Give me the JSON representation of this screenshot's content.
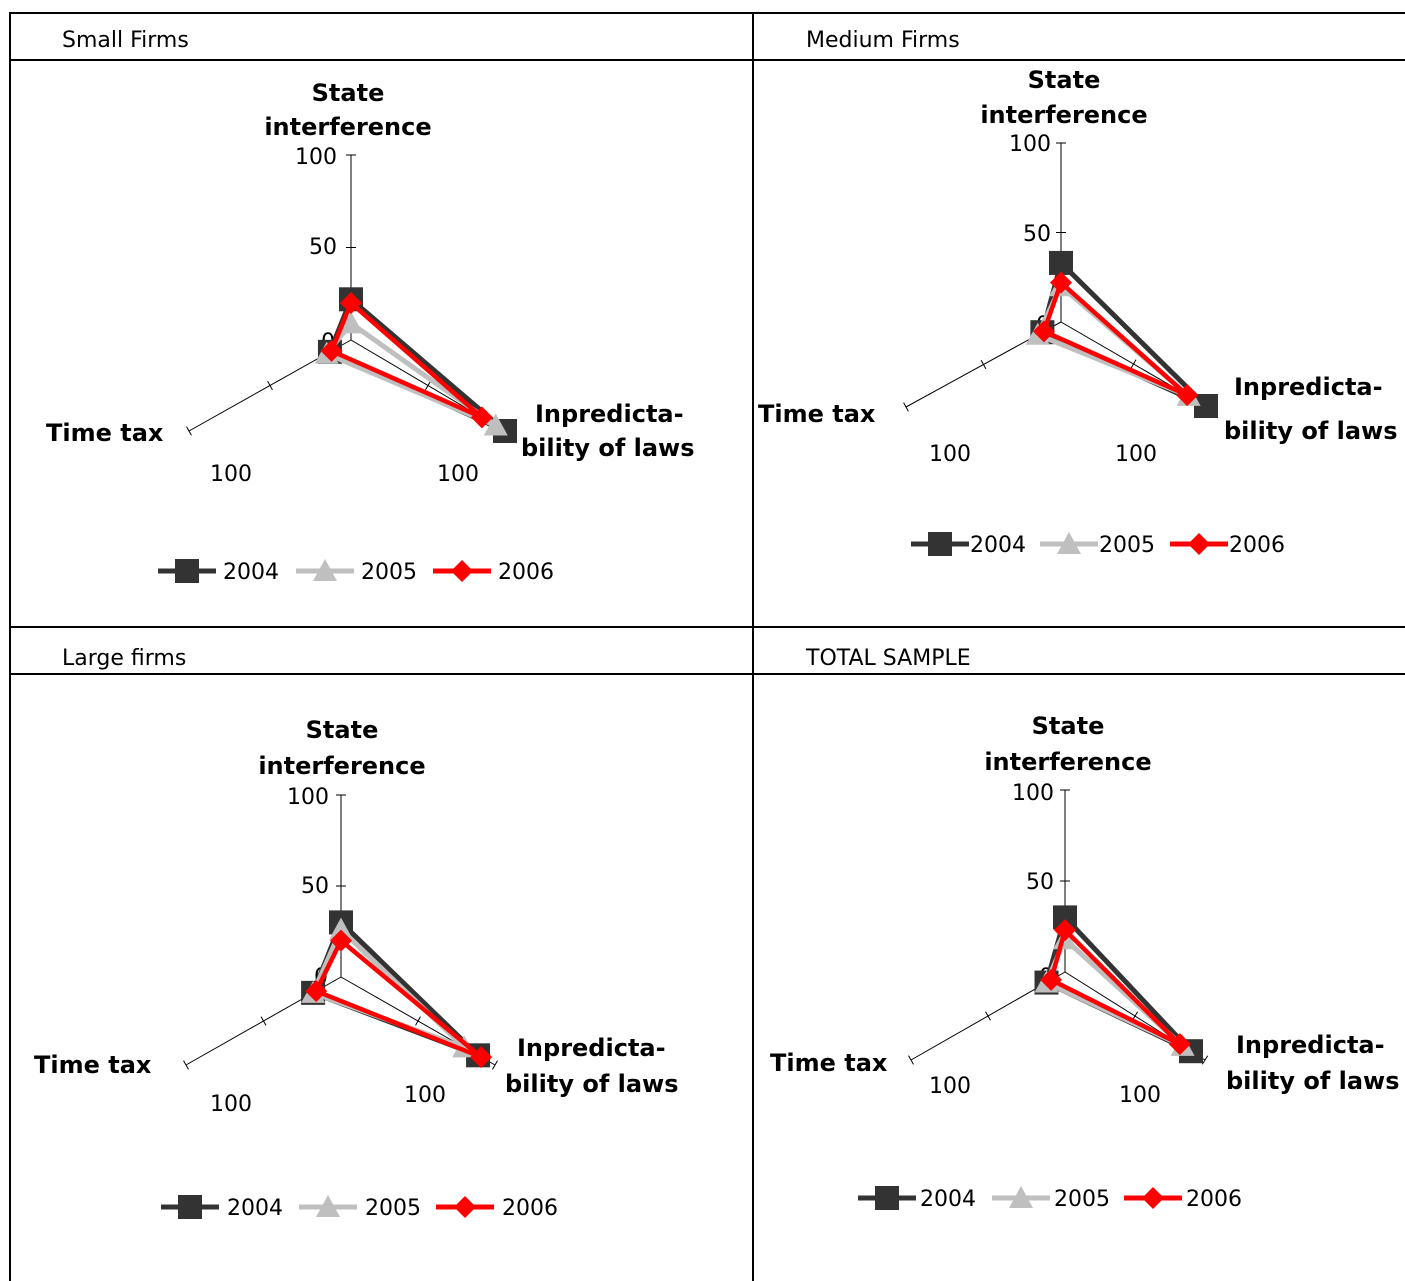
{
  "colors": {
    "2004": "#333333",
    "2005": "#bfbfbf",
    "2006": "#ff0000"
  },
  "panels": [
    {
      "title": "Small Firms"
    },
    {
      "title": "Medium Firms"
    },
    {
      "title": "Large firms"
    },
    {
      "title": "TOTAL SAMPLE"
    }
  ],
  "chart_data": [
    {
      "type": "radar",
      "title": "Small Firms",
      "axes": [
        "State interference",
        "Inpredicta-bility of laws",
        "Time tax"
      ],
      "axis_labels": {
        "top": [
          "State",
          "interference"
        ],
        "right": [
          "Inpredicta-",
          "bility of laws"
        ],
        "left": "Time tax"
      },
      "ticks": [
        "0",
        "50",
        "100"
      ],
      "extra_ticks": [
        "100",
        "100"
      ],
      "range": [
        0,
        100
      ],
      "series": [
        {
          "name": "2004",
          "marker": "square",
          "values": [
            22,
            100,
            13
          ]
        },
        {
          "name": "2005",
          "marker": "triangle",
          "values": [
            9,
            94,
            15
          ]
        },
        {
          "name": "2006",
          "marker": "diamond",
          "values": [
            20,
            85,
            12
          ]
        }
      ],
      "legend": "bottom"
    },
    {
      "type": "radar",
      "title": "Medium Firms",
      "axes": [
        "State interference",
        "Inpredicta-bility of laws",
        "Time tax"
      ],
      "axis_labels": {
        "top": [
          "State",
          "interference"
        ],
        "right": [
          "Inpredicta-",
          "bility of laws"
        ],
        "left": "Time tax"
      },
      "ticks": [
        "0",
        "50",
        "100"
      ],
      "extra_ticks": [
        "100",
        "100"
      ],
      "range": [
        0,
        100
      ],
      "series": [
        {
          "name": "2004",
          "marker": "square",
          "values": [
            33,
            100,
            12
          ]
        },
        {
          "name": "2005",
          "marker": "triangle",
          "values": [
            20,
            88,
            15
          ]
        },
        {
          "name": "2006",
          "marker": "diamond",
          "values": [
            22,
            87,
            11
          ]
        }
      ],
      "legend": "bottom"
    },
    {
      "type": "radar",
      "title": "Large firms",
      "axes": [
        "State interference",
        "Inpredicta-bility of laws",
        "Time tax"
      ],
      "axis_labels": {
        "top": [
          "State",
          "interference"
        ],
        "right": [
          "Inpredicta-",
          "bility of laws"
        ],
        "left": "Time tax"
      },
      "ticks": [
        "0",
        "50",
        "100"
      ],
      "extra_ticks": [
        "100",
        "100"
      ],
      "range": [
        0,
        100
      ],
      "series": [
        {
          "name": "2004",
          "marker": "square",
          "values": [
            30,
            89,
            18
          ]
        },
        {
          "name": "2005",
          "marker": "triangle",
          "values": [
            26,
            80,
            18
          ]
        },
        {
          "name": "2006",
          "marker": "diamond",
          "values": [
            20,
            91,
            16
          ]
        }
      ],
      "legend": "bottom"
    },
    {
      "type": "radar",
      "title": "TOTAL SAMPLE",
      "axes": [
        "State interference",
        "Inpredicta-bility of laws",
        "Time tax"
      ],
      "axis_labels": {
        "top": [
          "State",
          "interference"
        ],
        "right": [
          "Inpredicta-",
          "bility of laws"
        ],
        "left": "Time tax"
      },
      "ticks": [
        "0",
        "50",
        "100"
      ],
      "extra_ticks": [
        "100",
        "100"
      ],
      "range": [
        0,
        100
      ],
      "series": [
        {
          "name": "2004",
          "marker": "square",
          "values": [
            30,
            90,
            12
          ]
        },
        {
          "name": "2005",
          "marker": "triangle",
          "values": [
            18,
            84,
            12
          ]
        },
        {
          "name": "2006",
          "marker": "diamond",
          "values": [
            23,
            82,
            9
          ]
        }
      ],
      "legend": "bottom"
    }
  ]
}
